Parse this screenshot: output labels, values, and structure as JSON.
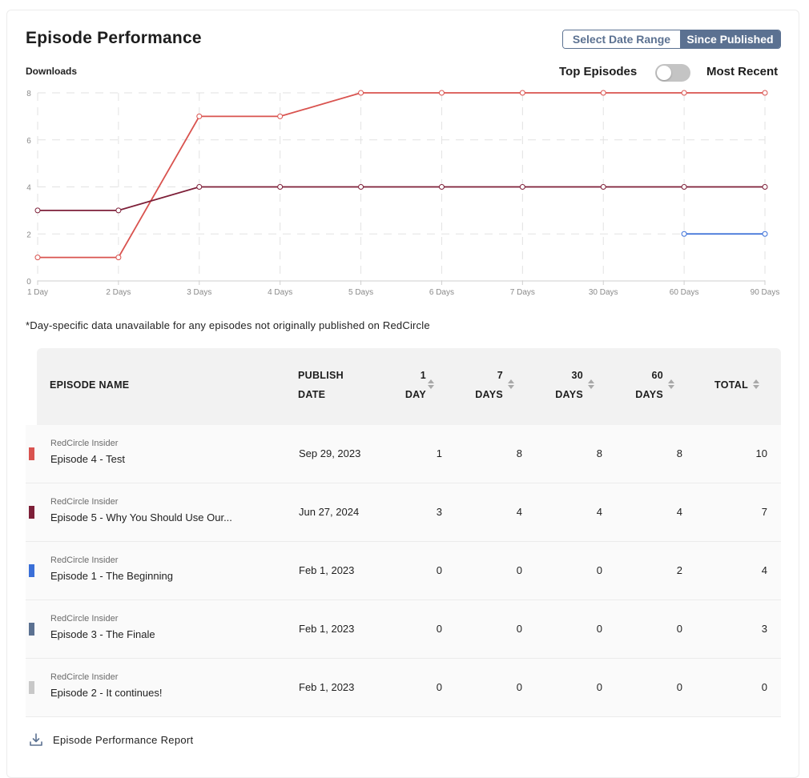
{
  "header": {
    "title": "Episode Performance"
  },
  "range_selector": {
    "option_a": "Select Date Range",
    "option_b": "Since Published",
    "selected": "Since Published"
  },
  "toggle": {
    "left_label": "Top Episodes",
    "right_label": "Most Recent",
    "state": "off"
  },
  "note": "*Day-specific data unavailable for any episodes not originally published on RedCircle",
  "chart_data": {
    "type": "line",
    "ylabel": "Downloads",
    "categories": [
      "1 Day",
      "2 Days",
      "3 Days",
      "4 Days",
      "5 Days",
      "6 Days",
      "7 Days",
      "30 Days",
      "60 Days",
      "90 Days"
    ],
    "yticks": [
      "0",
      "2",
      "4",
      "6",
      "8"
    ],
    "ylim": [
      0,
      8
    ],
    "grid": true,
    "series": [
      {
        "values": [
          1,
          1,
          7,
          7,
          8,
          8,
          8,
          8,
          8,
          8
        ],
        "color": "#d9534f"
      },
      {
        "values": [
          3,
          3,
          4,
          4,
          4,
          4,
          4,
          4,
          4,
          4
        ],
        "color": "#7d1f38"
      },
      {
        "values": [
          null,
          null,
          null,
          null,
          null,
          null,
          null,
          null,
          2,
          2
        ],
        "color": "#3a6fd8"
      }
    ]
  },
  "table": {
    "headers": {
      "episode_name": "EPISODE NAME",
      "publish_l1": "PUBLISH",
      "publish_l2": "DATE",
      "d1_l1": "1",
      "d1_l2": "DAY",
      "d7_l1": "7",
      "d7_l2": "DAYS",
      "d30_l1": "30",
      "d30_l2": "DAYS",
      "d60_l1": "60",
      "d60_l2": "DAYS",
      "total": "TOTAL"
    },
    "rows": [
      {
        "color": "#d9534f",
        "show": "RedCircle Insider",
        "episode": "Episode 4 - Test",
        "date": "Sep 29, 2023",
        "d1": "1",
        "d7": "8",
        "d30": "8",
        "d60": "8",
        "total": "10"
      },
      {
        "color": "#7d1f38",
        "show": "RedCircle Insider",
        "episode": "Episode 5 - Why You Should Use Our...",
        "date": "Jun 27, 2024",
        "d1": "3",
        "d7": "4",
        "d30": "4",
        "d60": "4",
        "total": "7"
      },
      {
        "color": "#3a6fd8",
        "show": "RedCircle Insider",
        "episode": "Episode 1 - The Beginning",
        "date": "Feb 1, 2023",
        "d1": "0",
        "d7": "0",
        "d30": "0",
        "d60": "2",
        "total": "4"
      },
      {
        "color": "#5b7191",
        "show": "RedCircle Insider",
        "episode": "Episode 3 - The Finale",
        "date": "Feb 1, 2023",
        "d1": "0",
        "d7": "0",
        "d30": "0",
        "d60": "0",
        "total": "3"
      },
      {
        "color": "#c8c8c8",
        "show": "RedCircle Insider",
        "episode": "Episode 2 - It continues!",
        "date": "Feb 1, 2023",
        "d1": "0",
        "d7": "0",
        "d30": "0",
        "d60": "0",
        "total": "0"
      }
    ]
  },
  "report": {
    "label": "Episode Performance Report",
    "icon": "download-icon"
  }
}
